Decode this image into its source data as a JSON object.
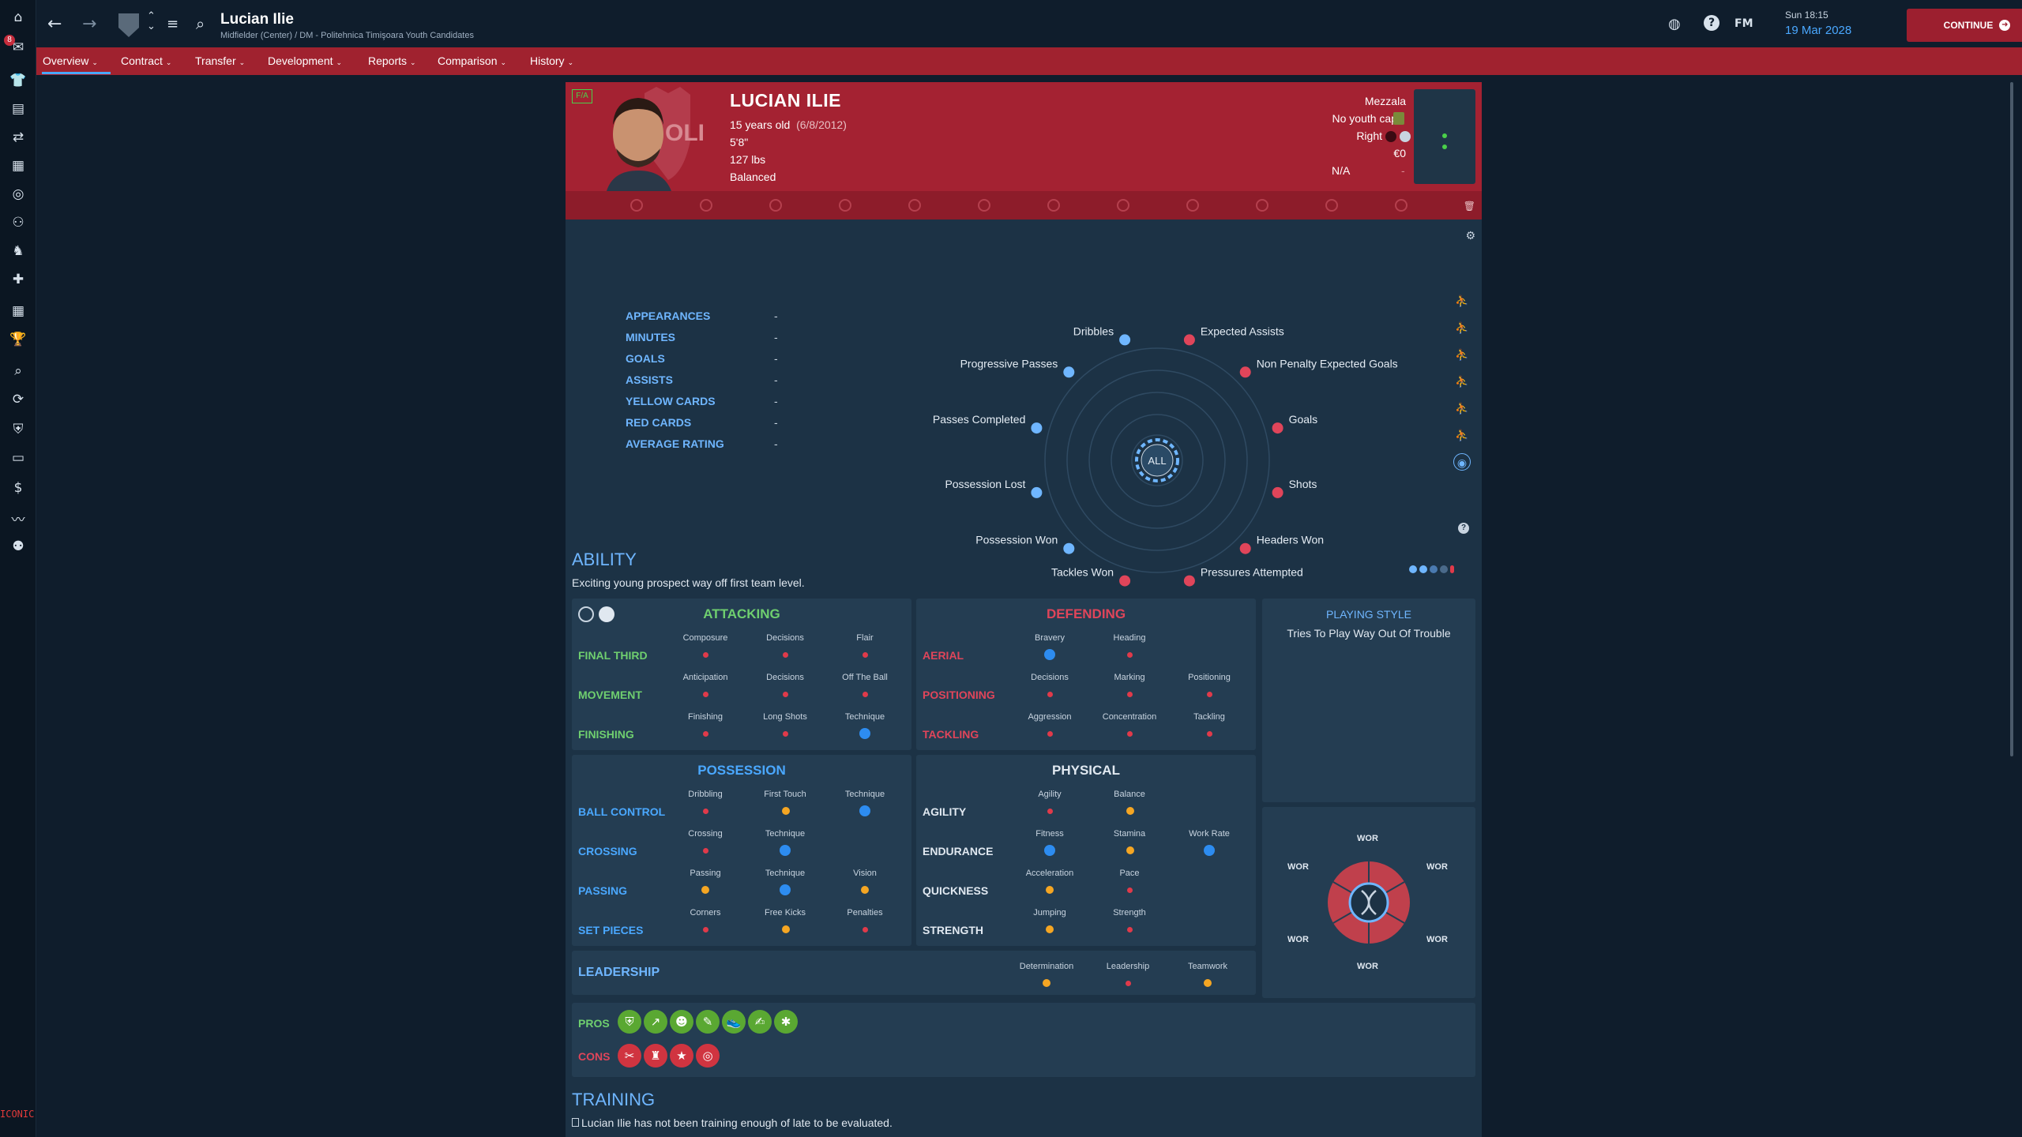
{
  "topbar": {
    "player_name": "Lucian Ilie",
    "player_subtitle": "Midfielder (Center) / DM - Politehnica Timişoara Youth Candidates",
    "date_time": "Sun 18:15",
    "date_day": "19 Mar 2028",
    "fm_label": "FM",
    "continue_label": "CONTINUE"
  },
  "sidebar": {
    "badge_count": "8",
    "logo_text": "ICONIC"
  },
  "nav": {
    "tabs": [
      {
        "label": "Overview"
      },
      {
        "label": "Contract"
      },
      {
        "label": "Transfer"
      },
      {
        "label": "Development"
      },
      {
        "label": "Reports"
      },
      {
        "label": "Comparison"
      },
      {
        "label": "History"
      }
    ]
  },
  "header": {
    "fa_badge": "F/A",
    "name": "LUCIAN ILIE",
    "age": "15 years old",
    "dob": "(6/8/2012)",
    "height": "5'8\"",
    "weight": "127 lbs",
    "personality": "Balanced",
    "role": "Mezzala",
    "caps": "No youth caps",
    "foot": "Right",
    "value": "€0",
    "na": "N/A",
    "dash": "-"
  },
  "stats": [
    {
      "label": "APPEARANCES",
      "value": "-"
    },
    {
      "label": "MINUTES",
      "value": "-"
    },
    {
      "label": "GOALS",
      "value": "-"
    },
    {
      "label": "ASSISTS",
      "value": "-"
    },
    {
      "label": "YELLOW CARDS",
      "value": "-"
    },
    {
      "label": "RED CARDS",
      "value": "-"
    },
    {
      "label": "AVERAGE RATING",
      "value": "-"
    }
  ],
  "radar": {
    "center_label": "ALL",
    "labels": [
      "Dribbles",
      "Expected Assists",
      "Non Penalty Expected Goals",
      "Goals",
      "Shots",
      "Headers Won",
      "Pressures Attempted",
      "Tackles Won",
      "Possession Won",
      "Possession Lost",
      "Passes Completed",
      "Progressive Passes"
    ],
    "colors": {
      "attack": "#e0455a",
      "possession": "#6fb6ff"
    }
  },
  "ability": {
    "title": "ABILITY",
    "description": "Exciting young prospect way off first team level."
  },
  "attacking": {
    "title": "ATTACKING",
    "rows": [
      {
        "label": "FINAL THIRD",
        "cols": [
          "Composure",
          "Decisions",
          "Flair"
        ]
      },
      {
        "label": "MOVEMENT",
        "cols": [
          "Anticipation",
          "Decisions",
          "Off The Ball"
        ]
      },
      {
        "label": "FINISHING",
        "cols": [
          "Finishing",
          "Long Shots",
          "Technique"
        ]
      }
    ]
  },
  "defending": {
    "title": "DEFENDING",
    "rows": [
      {
        "label": "AERIAL",
        "cols": [
          "Bravery",
          "Heading"
        ]
      },
      {
        "label": "POSITIONING",
        "cols": [
          "Decisions",
          "Marking",
          "Positioning"
        ]
      },
      {
        "label": "TACKLING",
        "cols": [
          "Aggression",
          "Concentration",
          "Tackling"
        ]
      }
    ]
  },
  "possession": {
    "title": "POSSESSION",
    "rows": [
      {
        "label": "BALL CONTROL",
        "cols": [
          "Dribbling",
          "First Touch",
          "Technique"
        ]
      },
      {
        "label": "CROSSING",
        "cols": [
          "Crossing",
          "Technique"
        ]
      },
      {
        "label": "PASSING",
        "cols": [
          "Passing",
          "Technique",
          "Vision"
        ]
      },
      {
        "label": "SET PIECES",
        "cols": [
          "Corners",
          "Free Kicks",
          "Penalties"
        ]
      }
    ]
  },
  "physical": {
    "title": "PHYSICAL",
    "rows": [
      {
        "label": "AGILITY",
        "cols": [
          "Agility",
          "Balance"
        ]
      },
      {
        "label": "ENDURANCE",
        "cols": [
          "Fitness",
          "Stamina",
          "Work Rate"
        ]
      },
      {
        "label": "QUICKNESS",
        "cols": [
          "Acceleration",
          "Pace"
        ]
      },
      {
        "label": "STRENGTH",
        "cols": [
          "Jumping",
          "Strength"
        ]
      }
    ]
  },
  "leadership": {
    "label": "LEADERSHIP",
    "cols": [
      "Determination",
      "Leadership",
      "Teamwork"
    ]
  },
  "playing_style": {
    "title": "PLAYING STYLE",
    "text": "Tries To Play Way Out Of Trouble",
    "wor": "WOR"
  },
  "pros_cons": {
    "pros_label": "PROS",
    "cons_label": "CONS"
  },
  "training": {
    "title": "TRAINING",
    "text": "Lucian Ilie has not been training enough of late to be evaluated."
  }
}
